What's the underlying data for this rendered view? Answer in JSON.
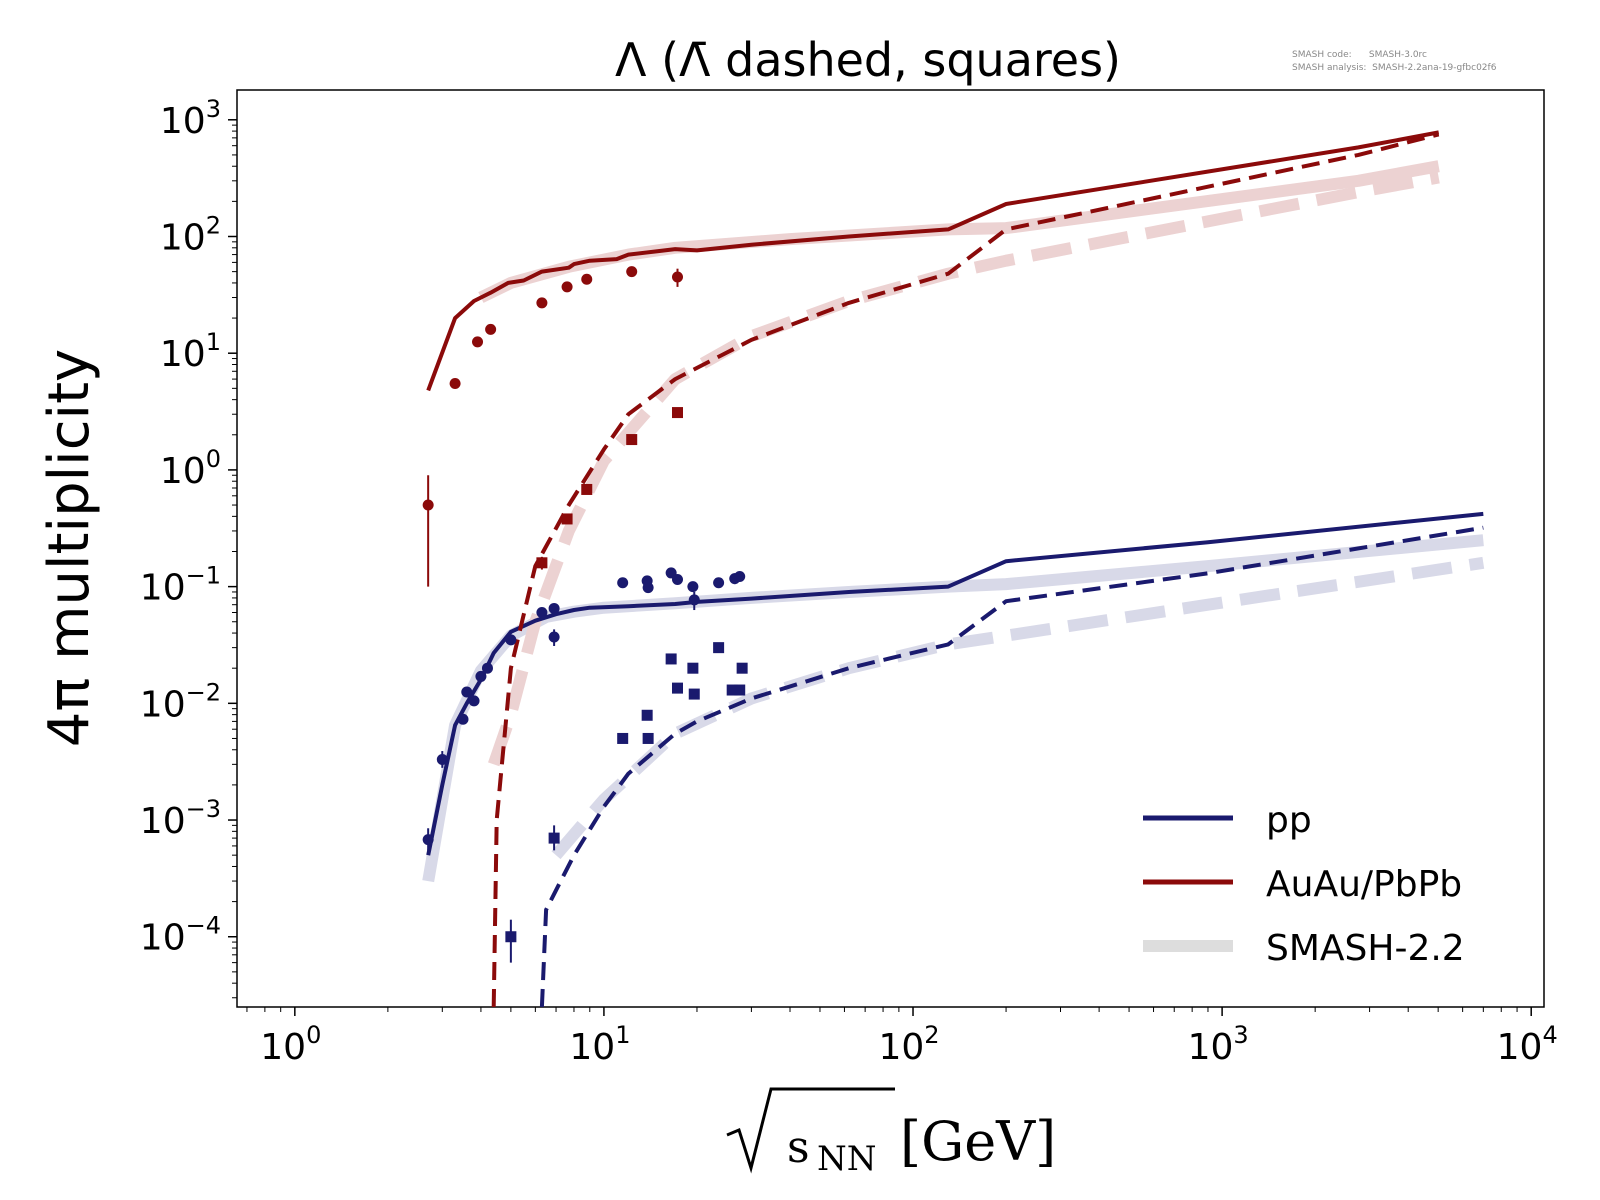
{
  "chart_data": {
    "type": "line",
    "title": "Λ (Λ̄ dashed, squares)",
    "ylabel": "4π multiplicity",
    "xlabel_sqrt_part": "s",
    "xlabel_subscript": "NN",
    "xlabel_unit": "[GeV]",
    "xscale": "log",
    "yscale": "log",
    "xlim": [
      0.65,
      11000
    ],
    "ylim": [
      2.5e-05,
      1800
    ],
    "x_ticks": [
      {
        "value": 1,
        "base": "10",
        "exp": "0"
      },
      {
        "value": 10,
        "base": "10",
        "exp": "1"
      },
      {
        "value": 100,
        "base": "10",
        "exp": "2"
      },
      {
        "value": 1000,
        "base": "10",
        "exp": "3"
      },
      {
        "value": 10000,
        "base": "10",
        "exp": "4"
      }
    ],
    "y_ticks": [
      {
        "value": 0.0001,
        "base": "10",
        "exp": "−4"
      },
      {
        "value": 0.001,
        "base": "10",
        "exp": "−3"
      },
      {
        "value": 0.01,
        "base": "10",
        "exp": "−2"
      },
      {
        "value": 0.1,
        "base": "10",
        "exp": "−1"
      },
      {
        "value": 1,
        "base": "10",
        "exp": "0"
      },
      {
        "value": 10,
        "base": "10",
        "exp": "1"
      },
      {
        "value": 100,
        "base": "10",
        "exp": "2"
      },
      {
        "value": 1000,
        "base": "10",
        "exp": "3"
      }
    ],
    "annotation": {
      "lines": [
        "SMASH code:      SMASH-3.0rc",
        "SMASH analysis:  SMASH-2.2ana-19-gfbc02f6"
      ]
    },
    "colors": {
      "pp": "#1a1a6e",
      "auau": "#8b0a0a",
      "ref_pp": "#d8d9e8",
      "ref_auau": "#ecd2d2",
      "legend_ref": "#dddddd"
    },
    "legend": {
      "placement": "bottom-right",
      "entries": [
        {
          "label": "pp",
          "style": "pp"
        },
        {
          "label": "AuAu/PbPb",
          "style": "auau"
        },
        {
          "label": "SMASH-2.2",
          "style": "ref"
        }
      ]
    },
    "series": [
      {
        "key": "ref_pp_lambda",
        "color_key": "ref_pp",
        "dash": false,
        "x": [
          2.7,
          3.3,
          4.0,
          5.0,
          6.5,
          8.0,
          10,
          17,
          30,
          62,
          130,
          200,
          900,
          7000
        ],
        "y": [
          0.0003,
          0.0065,
          0.019,
          0.038,
          0.055,
          0.061,
          0.066,
          0.072,
          0.08,
          0.09,
          0.1,
          0.105,
          0.15,
          0.25
        ]
      },
      {
        "key": "ref_pp_antilambda",
        "color_key": "ref_pp",
        "dash": true,
        "x": [
          7.0,
          10,
          17,
          30,
          62,
          130,
          200,
          900,
          7000
        ],
        "y": [
          0.0005,
          0.0015,
          0.0055,
          0.011,
          0.02,
          0.032,
          0.038,
          0.07,
          0.16
        ]
      },
      {
        "key": "ref_auau_lambda",
        "color_key": "ref_auau",
        "dash": false,
        "x": [
          4.0,
          5.0,
          7.7,
          12,
          17,
          40,
          130,
          200,
          2760,
          5020
        ],
        "y": [
          30,
          40,
          55,
          70,
          80,
          95,
          115,
          118,
          300,
          400
        ]
      },
      {
        "key": "ref_auau_antilambda",
        "color_key": "ref_auau",
        "dash": true,
        "x": [
          4.4,
          5.0,
          6.0,
          7.7,
          10,
          17,
          30,
          62,
          130,
          200,
          2760,
          5020
        ],
        "y": [
          0.003,
          0.008,
          0.05,
          0.3,
          1.2,
          6,
          14,
          28,
          48,
          62,
          240,
          320
        ]
      },
      {
        "key": "pp_lambda",
        "color_key": "pp",
        "dash": false,
        "x": [
          2.7,
          3.0,
          3.3,
          3.6,
          4.0,
          4.4,
          5.0,
          6.0,
          7.0,
          8.0,
          9.0,
          12,
          17,
          20,
          30,
          62,
          130,
          200,
          900,
          7000
        ],
        "y": [
          0.0005,
          0.002,
          0.0065,
          0.01,
          0.016,
          0.027,
          0.041,
          0.051,
          0.058,
          0.063,
          0.066,
          0.068,
          0.071,
          0.074,
          0.079,
          0.09,
          0.1,
          0.165,
          0.24,
          0.42
        ]
      },
      {
        "key": "pp_antilambda",
        "color_key": "pp",
        "dash": true,
        "x": [
          6.3,
          6.5,
          7.0,
          8.0,
          10,
          12,
          17,
          20,
          30,
          62,
          130,
          200,
          900,
          7000
        ],
        "y": [
          2.5e-05,
          0.00017,
          0.00025,
          0.0005,
          0.0013,
          0.0025,
          0.0055,
          0.007,
          0.011,
          0.02,
          0.032,
          0.075,
          0.13,
          0.32
        ]
      },
      {
        "key": "auau_lambda",
        "color_key": "auau",
        "dash": false,
        "x": [
          2.7,
          3.3,
          3.8,
          4.3,
          4.9,
          5.5,
          6.3,
          7.7,
          8.0,
          9.0,
          11,
          12,
          15,
          17,
          20,
          30,
          62,
          130,
          200,
          2760,
          5020
        ],
        "y": [
          4.8,
          20,
          28,
          33,
          40,
          42,
          50,
          54,
          58,
          62,
          64,
          70,
          75,
          78,
          76,
          85,
          100,
          115,
          190,
          580,
          780
        ]
      },
      {
        "key": "auau_antilambda",
        "color_key": "auau",
        "dash": true,
        "x": [
          4.4,
          4.5,
          5.0,
          6.0,
          7.7,
          10,
          12,
          17,
          30,
          62,
          130,
          200,
          2760,
          5020
        ],
        "y": [
          2.5e-05,
          0.001,
          0.02,
          0.15,
          0.5,
          1.5,
          3,
          6,
          13,
          27,
          48,
          115,
          500,
          750
        ]
      }
    ],
    "markers": [
      {
        "key": "pp_lambda_data",
        "color_key": "pp",
        "shape": "circle",
        "points": [
          {
            "x": 2.7,
            "y": 0.00068,
            "lo": 0.00055,
            "hi": 0.00085
          },
          {
            "x": 3.0,
            "y": 0.0033,
            "lo": 0.0028,
            "hi": 0.0039
          },
          {
            "x": 3.5,
            "y": 0.0073
          },
          {
            "x": 3.6,
            "y": 0.0125
          },
          {
            "x": 3.8,
            "y": 0.0105
          },
          {
            "x": 4.0,
            "y": 0.017
          },
          {
            "x": 4.2,
            "y": 0.02
          },
          {
            "x": 5.0,
            "y": 0.035
          },
          {
            "x": 6.3,
            "y": 0.06
          },
          {
            "x": 6.9,
            "y": 0.065
          },
          {
            "x": 6.9,
            "y": 0.037,
            "lo": 0.031,
            "hi": 0.043
          },
          {
            "x": 11.5,
            "y": 0.108
          },
          {
            "x": 13.8,
            "y": 0.112
          },
          {
            "x": 13.9,
            "y": 0.098
          },
          {
            "x": 16.5,
            "y": 0.131
          },
          {
            "x": 17.3,
            "y": 0.115
          },
          {
            "x": 19.4,
            "y": 0.1
          },
          {
            "x": 19.6,
            "y": 0.077,
            "lo": 0.063,
            "hi": 0.09
          },
          {
            "x": 23.5,
            "y": 0.108
          },
          {
            "x": 26.5,
            "y": 0.117,
            "lo": 0.105,
            "hi": 0.13
          },
          {
            "x": 27.5,
            "y": 0.122
          }
        ]
      },
      {
        "key": "pp_antilambda_data",
        "color_key": "pp",
        "shape": "square",
        "points": [
          {
            "x": 5.0,
            "y": 0.0001,
            "lo": 6e-05,
            "hi": 0.00014
          },
          {
            "x": 6.9,
            "y": 0.0007,
            "lo": 0.00055,
            "hi": 0.0009
          },
          {
            "x": 11.5,
            "y": 0.005
          },
          {
            "x": 13.8,
            "y": 0.0079
          },
          {
            "x": 13.9,
            "y": 0.005
          },
          {
            "x": 16.5,
            "y": 0.024
          },
          {
            "x": 17.3,
            "y": 0.0135
          },
          {
            "x": 19.4,
            "y": 0.02
          },
          {
            "x": 19.6,
            "y": 0.012
          },
          {
            "x": 23.5,
            "y": 0.03
          },
          {
            "x": 26.0,
            "y": 0.013
          },
          {
            "x": 27.5,
            "y": 0.013
          },
          {
            "x": 28.0,
            "y": 0.02
          }
        ]
      },
      {
        "key": "auau_lambda_data",
        "color_key": "auau",
        "shape": "circle",
        "points": [
          {
            "x": 2.7,
            "y": 0.5,
            "lo": 0.1,
            "hi": 0.9
          },
          {
            "x": 3.3,
            "y": 5.5
          },
          {
            "x": 3.9,
            "y": 12.5
          },
          {
            "x": 4.3,
            "y": 16
          },
          {
            "x": 6.3,
            "y": 27
          },
          {
            "x": 7.6,
            "y": 37
          },
          {
            "x": 8.8,
            "y": 43
          },
          {
            "x": 12.3,
            "y": 50
          },
          {
            "x": 17.3,
            "y": 45,
            "lo": 37,
            "hi": 53
          }
        ]
      },
      {
        "key": "auau_antilambda_data",
        "color_key": "auau",
        "shape": "square",
        "points": [
          {
            "x": 6.3,
            "y": 0.16,
            "lo": 0.14,
            "hi": 0.18
          },
          {
            "x": 7.6,
            "y": 0.38
          },
          {
            "x": 8.8,
            "y": 0.68
          },
          {
            "x": 12.3,
            "y": 1.82
          },
          {
            "x": 17.3,
            "y": 3.1
          }
        ]
      }
    ]
  }
}
